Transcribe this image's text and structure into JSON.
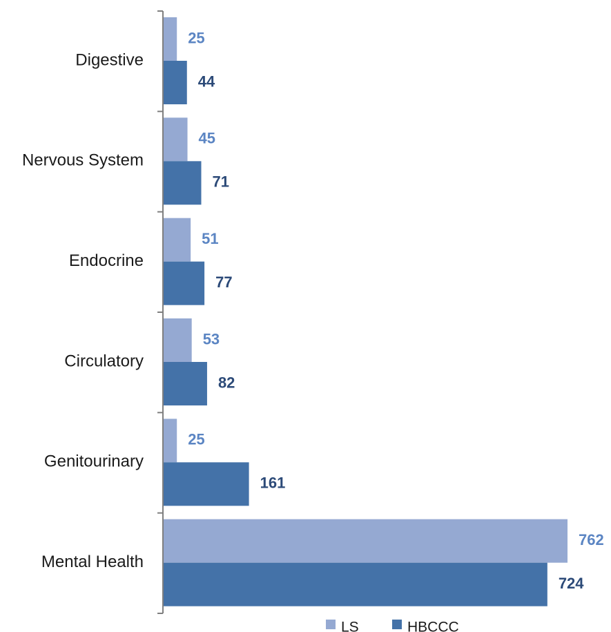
{
  "chart_data": {
    "type": "bar",
    "orientation": "horizontal",
    "categories": [
      "Digestive",
      "Nervous System",
      "Endocrine",
      "Circulatory",
      "Genitourinary",
      "Mental Health"
    ],
    "series": [
      {
        "name": "LS",
        "values": [
          25,
          45,
          51,
          53,
          25,
          762
        ],
        "color": "#95a9d2",
        "label_color": "#5b85c3"
      },
      {
        "name": "HBCCC",
        "values": [
          44,
          71,
          77,
          82,
          161,
          724
        ],
        "color": "#4472a8",
        "label_color": "#2c4a78"
      }
    ],
    "title": "",
    "xlabel": "",
    "ylabel": "",
    "xlim": [
      0,
      762
    ],
    "grid": false,
    "legend": "bottom"
  }
}
